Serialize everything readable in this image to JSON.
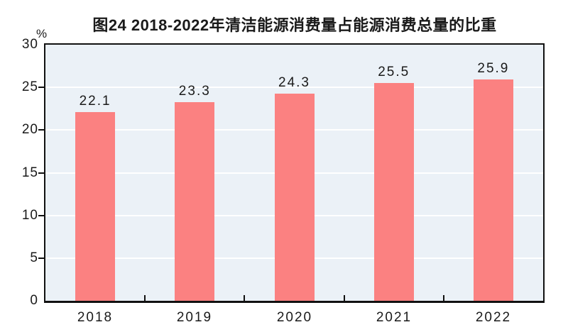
{
  "chart_data": {
    "type": "bar",
    "title": "图24  2018-2022年清洁能源消费量占能源消费总量的比重",
    "unit_label": "%",
    "categories": [
      "2018",
      "2019",
      "2020",
      "2021",
      "2022"
    ],
    "values": [
      22.1,
      23.3,
      24.3,
      25.5,
      25.9
    ],
    "value_labels": [
      "22.1",
      "23.3",
      "24.3",
      "25.5",
      "25.9"
    ],
    "xlabel": "",
    "ylabel": "%",
    "ylim": [
      0,
      30
    ],
    "ytick_interval": 5,
    "yticks": [
      0,
      5,
      10,
      15,
      20,
      25,
      30
    ],
    "grid": "horizontal-white",
    "legend": "none",
    "colors": {
      "bar": "#FB8181",
      "plot_background": "#EBF1F7",
      "gridline": "#FFFFFF",
      "axis": "#111111",
      "text": "#1A1A1A",
      "page_background": "#FFFFFF"
    }
  }
}
